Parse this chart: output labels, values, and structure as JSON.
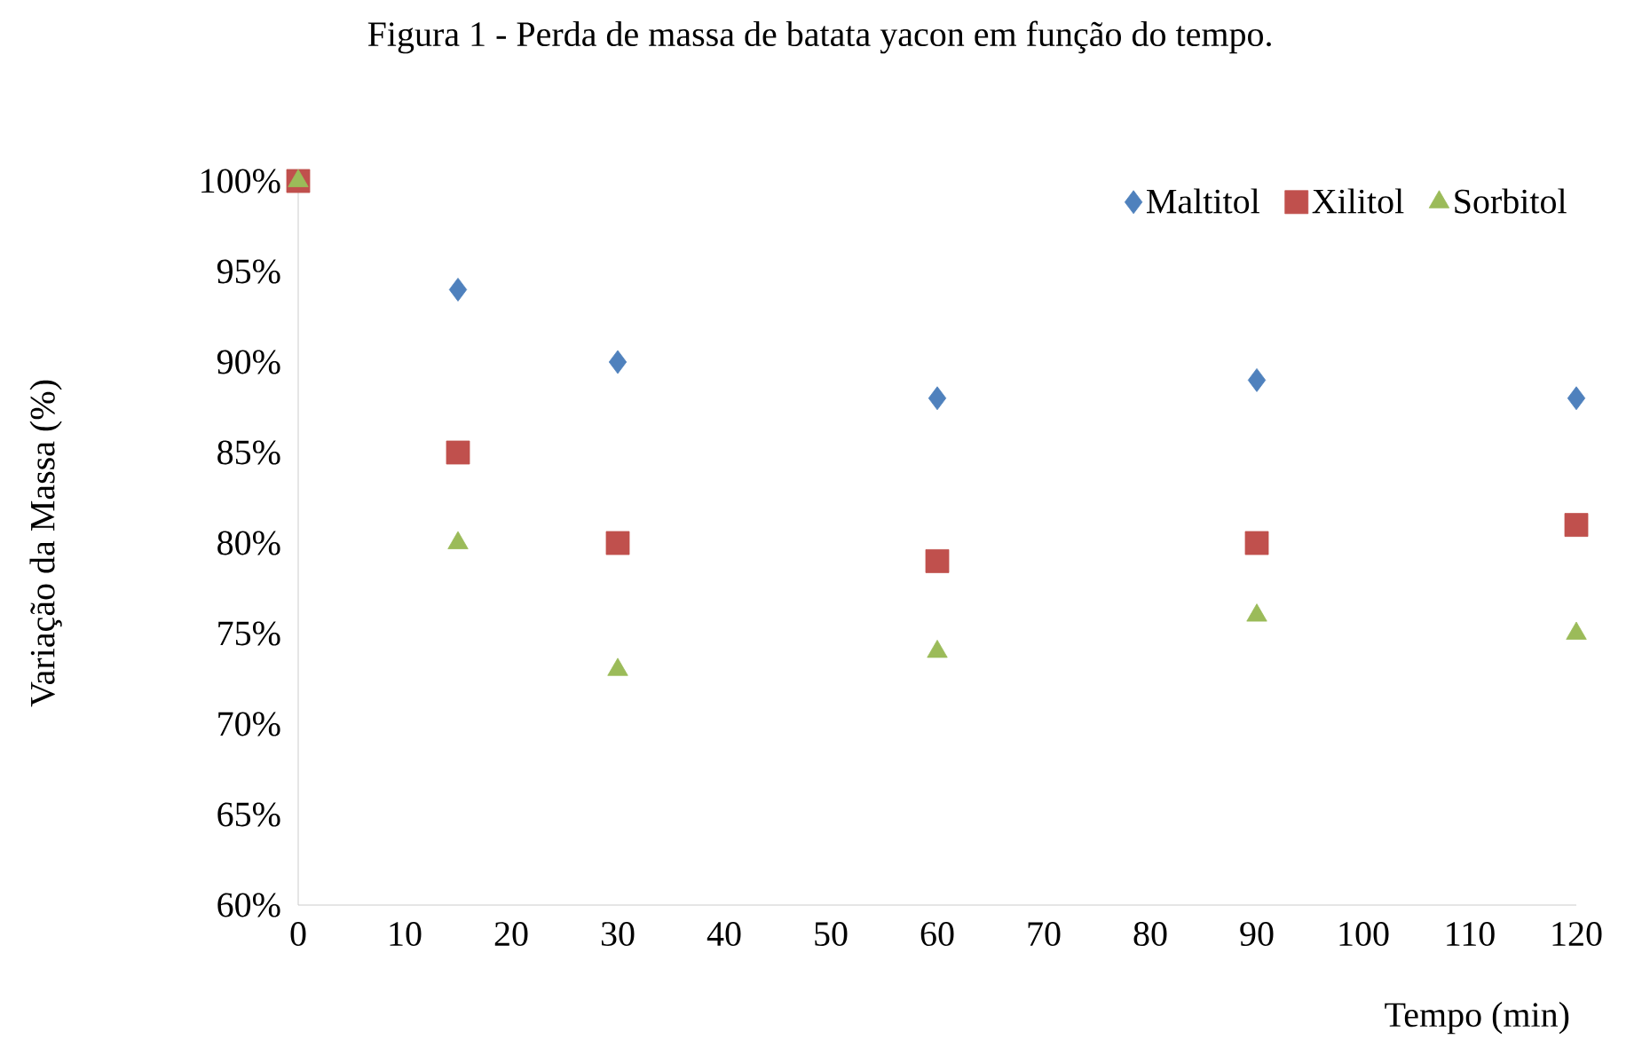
{
  "chart_data": {
    "type": "scatter",
    "title": "Figura 1 - Perda de massa de batata yacon em função do tempo.",
    "xlabel": "Tempo (min)",
    "ylabel": "Variação da Massa  (%)",
    "x": [
      0,
      15,
      30,
      60,
      90,
      120
    ],
    "series": [
      {
        "name": "Maltitol",
        "color": "#4f81bd",
        "marker": "diamond",
        "values": [
          null,
          94,
          90,
          88,
          89,
          88
        ]
      },
      {
        "name": "Xilitol",
        "color": "#c0504d",
        "marker": "square",
        "values": [
          100,
          85,
          80,
          79,
          80,
          81
        ]
      },
      {
        "name": "Sorbitol",
        "color": "#9bbb59",
        "marker": "triangle",
        "values": [
          100,
          80,
          73,
          74,
          76,
          75
        ]
      }
    ],
    "xlim": [
      0,
      120
    ],
    "ylim": [
      60,
      100
    ],
    "xticks": [
      0,
      10,
      20,
      30,
      40,
      50,
      60,
      70,
      80,
      90,
      100,
      110,
      120
    ],
    "yticks": [
      {
        "value": 60,
        "label": "60%"
      },
      {
        "value": 65,
        "label": "65%"
      },
      {
        "value": 70,
        "label": "70%"
      },
      {
        "value": 75,
        "label": "75%"
      },
      {
        "value": 80,
        "label": "80%"
      },
      {
        "value": 85,
        "label": "85%"
      },
      {
        "value": 90,
        "label": "90%"
      },
      {
        "value": 95,
        "label": "95%"
      },
      {
        "value": 100,
        "label": "100%"
      }
    ],
    "grid": false,
    "legend": "top right"
  }
}
